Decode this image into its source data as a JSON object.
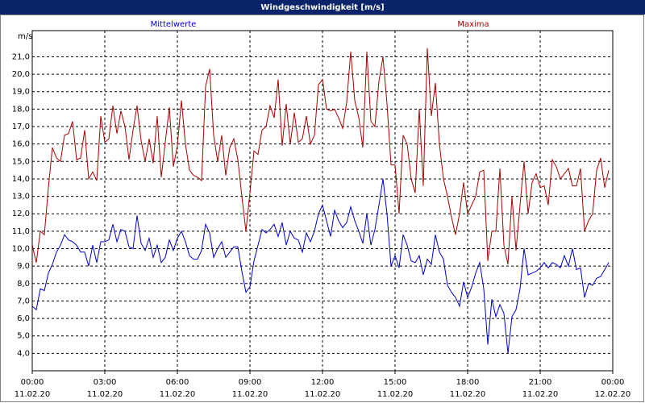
{
  "chart_data": {
    "type": "line",
    "title": "Windgeschwindigkeit [m/s]",
    "ylabel": "m/s",
    "x": [
      0,
      10,
      20,
      30,
      40,
      50,
      60,
      70,
      80,
      90,
      100,
      110,
      120,
      130,
      140,
      150,
      160,
      170,
      180,
      190,
      200,
      210,
      220,
      230,
      240,
      250,
      260,
      270,
      280,
      290,
      300,
      310,
      320,
      330,
      340,
      350,
      360,
      370,
      380,
      390,
      400,
      410,
      420,
      430,
      440,
      450,
      460,
      470,
      480,
      490,
      500,
      510,
      520,
      530,
      540,
      550,
      560,
      570,
      580,
      590,
      600,
      610,
      620,
      630,
      640,
      650,
      660,
      670,
      680,
      690,
      700,
      710,
      720,
      730,
      740,
      750,
      760,
      770,
      780,
      790,
      800,
      810,
      820,
      830,
      840,
      850,
      860,
      870,
      880,
      890,
      900,
      910,
      920,
      930,
      940,
      950,
      960,
      970,
      980,
      990,
      1000,
      1010,
      1020,
      1030,
      1040,
      1050,
      1060,
      1070,
      1080,
      1090,
      1100,
      1110,
      1120,
      1130,
      1140,
      1150,
      1160,
      1170,
      1180,
      1190,
      1200,
      1210,
      1220,
      1230,
      1240,
      1250,
      1260,
      1270,
      1280,
      1290,
      1300,
      1310,
      1320,
      1330,
      1340,
      1350,
      1360,
      1370,
      1380,
      1390,
      1400,
      1410,
      1420,
      1430
    ],
    "series": [
      {
        "name": "Mittelwerte",
        "color": "#0000cc",
        "values": [
          6.7,
          6.5,
          7.7,
          7.6,
          8.6,
          9.1,
          9.8,
          10.2,
          10.8,
          10.5,
          10.4,
          10.2,
          9.8,
          9.8,
          9.0,
          10.2,
          9.2,
          10.4,
          10.4,
          10.5,
          11.4,
          10.4,
          11.1,
          11.0,
          10.1,
          10.0,
          11.9,
          10.3,
          9.9,
          10.6,
          9.5,
          10.2,
          9.2,
          9.5,
          10.5,
          9.9,
          10.6,
          11.0,
          10.4,
          9.6,
          9.4,
          9.4,
          9.9,
          11.4,
          10.9,
          9.5,
          10.0,
          10.4,
          9.5,
          9.8,
          10.1,
          10.1,
          8.7,
          7.5,
          7.8,
          9.3,
          10.2,
          11.1,
          10.9,
          11.1,
          11.4,
          10.7,
          11.5,
          10.2,
          11.0,
          10.6,
          10.5,
          9.8,
          10.9,
          10.4,
          11.0,
          12.0,
          12.5,
          11.6,
          10.7,
          12.2,
          11.6,
          11.2,
          11.5,
          12.4,
          11.6,
          11.0,
          10.3,
          12.0,
          10.2,
          11.1,
          12.5,
          14.0,
          12.0,
          9.0,
          9.6,
          8.9,
          10.8,
          10.2,
          9.3,
          9.2,
          9.6,
          8.5,
          9.4,
          9.1,
          10.8,
          9.8,
          9.4,
          7.9,
          7.5,
          7.2,
          6.7,
          8.1,
          7.2,
          7.8,
          8.6,
          9.2,
          7.7,
          4.5,
          7.1,
          6.1,
          6.8,
          6.3,
          4.0,
          6.1,
          6.5,
          7.7,
          10.0,
          8.5,
          8.6,
          8.7,
          8.9,
          9.2,
          8.9,
          9.2,
          9.1,
          8.9,
          9.6,
          9.0,
          10.0,
          8.8,
          8.9,
          7.2,
          8.0,
          7.9,
          8.3,
          8.4,
          8.8,
          9.2
        ]
      },
      {
        "name": "Maxima",
        "color": "#aa0000",
        "values": [
          10.2,
          9.2,
          11.0,
          10.8,
          13.5,
          15.8,
          15.2,
          15.0,
          16.5,
          16.6,
          17.3,
          15.1,
          15.2,
          16.8,
          14.0,
          14.4,
          13.9,
          17.6,
          16.1,
          16.3,
          18.2,
          16.6,
          17.9,
          17.0,
          15.1,
          16.8,
          18.2,
          16.2,
          15.0,
          16.3,
          14.9,
          17.6,
          14.1,
          16.1,
          18.1,
          14.7,
          15.9,
          18.5,
          16.0,
          14.5,
          14.2,
          14.1,
          13.9,
          19.3,
          20.3,
          16.5,
          15.0,
          16.5,
          14.2,
          15.8,
          16.3,
          15.1,
          13.0,
          11.0,
          13.2,
          15.6,
          15.4,
          16.8,
          17.0,
          18.2,
          17.5,
          19.7,
          15.9,
          18.3,
          16.0,
          17.8,
          16.1,
          16.3,
          17.6,
          16.0,
          16.5,
          19.4,
          19.7,
          18.0,
          17.9,
          18.0,
          17.5,
          16.9,
          18.4,
          21.3,
          18.5,
          17.5,
          15.8,
          21.3,
          17.3,
          17.0,
          19.6,
          21.0,
          18.3,
          14.8,
          14.8,
          12.0,
          16.5,
          16.0,
          14.0,
          13.2,
          18.0,
          13.6,
          21.5,
          17.6,
          19.5,
          16.0,
          14.0,
          13.0,
          11.8,
          10.8,
          12.0,
          13.8,
          12.0,
          12.5,
          13.0,
          14.4,
          14.5,
          9.3,
          11.0,
          11.0,
          14.6,
          10.2,
          9.1,
          13.0,
          9.9,
          12.5,
          15.0,
          12.0,
          13.8,
          14.3,
          13.5,
          13.6,
          12.5,
          15.1,
          14.7,
          14.0,
          14.3,
          14.6,
          13.6,
          13.6,
          14.6,
          11.0,
          11.6,
          12.0,
          14.5,
          15.2,
          13.5,
          14.5
        ]
      }
    ],
    "xlim": [
      0,
      1440
    ],
    "xticks": [
      {
        "value": 0,
        "label": "00:00",
        "date": "11.02.20"
      },
      {
        "value": 180,
        "label": "03:00",
        "date": "11.02.20"
      },
      {
        "value": 360,
        "label": "06:00",
        "date": "11.02.20"
      },
      {
        "value": 540,
        "label": "09:00",
        "date": "11.02.20"
      },
      {
        "value": 720,
        "label": "12:00",
        "date": "11.02.20"
      },
      {
        "value": 900,
        "label": "15:00",
        "date": "11.02.20"
      },
      {
        "value": 1080,
        "label": "18:00",
        "date": "11.02.20"
      },
      {
        "value": 1260,
        "label": "21:00",
        "date": "11.02.20"
      },
      {
        "value": 1440,
        "label": "00:00",
        "date": "12.02.20"
      }
    ],
    "ylim": [
      3.0,
      22.5
    ],
    "yticks": [
      {
        "value": 4,
        "label": "4,0"
      },
      {
        "value": 5,
        "label": "5,0"
      },
      {
        "value": 6,
        "label": "6,0"
      },
      {
        "value": 7,
        "label": "7,0"
      },
      {
        "value": 8,
        "label": "8,0"
      },
      {
        "value": 9,
        "label": "9,0"
      },
      {
        "value": 10,
        "label": "10,0"
      },
      {
        "value": 11,
        "label": "11,0"
      },
      {
        "value": 12,
        "label": "12,0"
      },
      {
        "value": 13,
        "label": "13,0"
      },
      {
        "value": 14,
        "label": "14,0"
      },
      {
        "value": 15,
        "label": "15,0"
      },
      {
        "value": 16,
        "label": "16,0"
      },
      {
        "value": 17,
        "label": "17,0"
      },
      {
        "value": 18,
        "label": "18,0"
      },
      {
        "value": 19,
        "label": "19,0"
      },
      {
        "value": 20,
        "label": "20,0"
      },
      {
        "value": 21,
        "label": "21,0"
      }
    ],
    "grid": true
  }
}
